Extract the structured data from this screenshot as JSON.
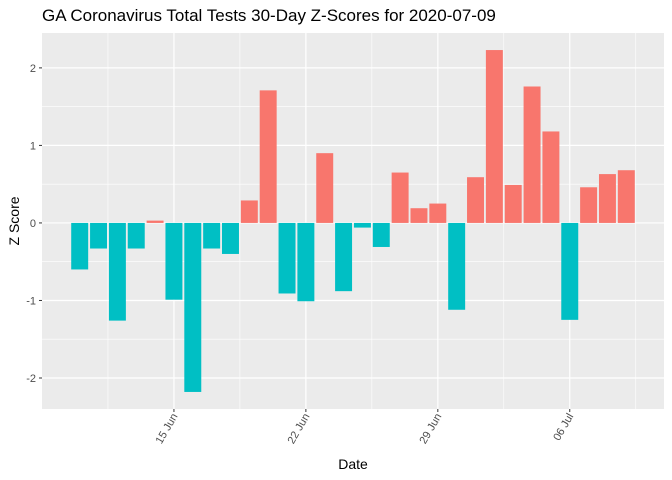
{
  "chart_data": {
    "type": "bar",
    "title": "GA Coronavirus Total Tests 30-Day Z-Scores for 2020-07-09",
    "xlabel": "Date",
    "ylabel": "Z Score",
    "ylim": [
      -2.4,
      2.45
    ],
    "y_ticks": [
      -2,
      -1,
      0,
      1,
      2
    ],
    "x_tick_labels": [
      {
        "date": "2020-06-15",
        "label": "15 Jun"
      },
      {
        "date": "2020-06-22",
        "label": "22 Jun"
      },
      {
        "date": "2020-06-29",
        "label": "29 Jun"
      },
      {
        "date": "2020-07-06",
        "label": "06 Jul"
      }
    ],
    "x_range": [
      "2020-06-08",
      "2020-07-11"
    ],
    "grid": true,
    "legend": "none",
    "colors": {
      "positive": "#F8766D",
      "negative": "#00BFC4",
      "panel": "#EBEBEB",
      "grid": "#FFFFFF"
    },
    "bars": [
      {
        "date": "2020-06-10",
        "value": -0.6
      },
      {
        "date": "2020-06-11",
        "value": -0.33
      },
      {
        "date": "2020-06-12",
        "value": -1.26
      },
      {
        "date": "2020-06-13",
        "value": -0.33
      },
      {
        "date": "2020-06-14",
        "value": 0.03
      },
      {
        "date": "2020-06-15",
        "value": -0.99
      },
      {
        "date": "2020-06-16",
        "value": -2.18
      },
      {
        "date": "2020-06-17",
        "value": -0.33
      },
      {
        "date": "2020-06-18",
        "value": -0.4
      },
      {
        "date": "2020-06-19",
        "value": 0.29
      },
      {
        "date": "2020-06-20",
        "value": 1.71
      },
      {
        "date": "2020-06-21",
        "value": -0.91
      },
      {
        "date": "2020-06-22",
        "value": -1.01
      },
      {
        "date": "2020-06-23",
        "value": 0.9
      },
      {
        "date": "2020-06-24",
        "value": -0.88
      },
      {
        "date": "2020-06-25",
        "value": -0.06
      },
      {
        "date": "2020-06-26",
        "value": -0.31
      },
      {
        "date": "2020-06-27",
        "value": 0.65
      },
      {
        "date": "2020-06-28",
        "value": 0.19
      },
      {
        "date": "2020-06-29",
        "value": 0.25
      },
      {
        "date": "2020-06-30",
        "value": -1.12
      },
      {
        "date": "2020-07-01",
        "value": 0.59
      },
      {
        "date": "2020-07-02",
        "value": 2.23
      },
      {
        "date": "2020-07-03",
        "value": 0.49
      },
      {
        "date": "2020-07-04",
        "value": 1.76
      },
      {
        "date": "2020-07-05",
        "value": 1.18
      },
      {
        "date": "2020-07-06",
        "value": -1.25
      },
      {
        "date": "2020-07-07",
        "value": 0.46
      },
      {
        "date": "2020-07-08",
        "value": 0.63
      },
      {
        "date": "2020-07-09",
        "value": 0.68
      }
    ]
  }
}
